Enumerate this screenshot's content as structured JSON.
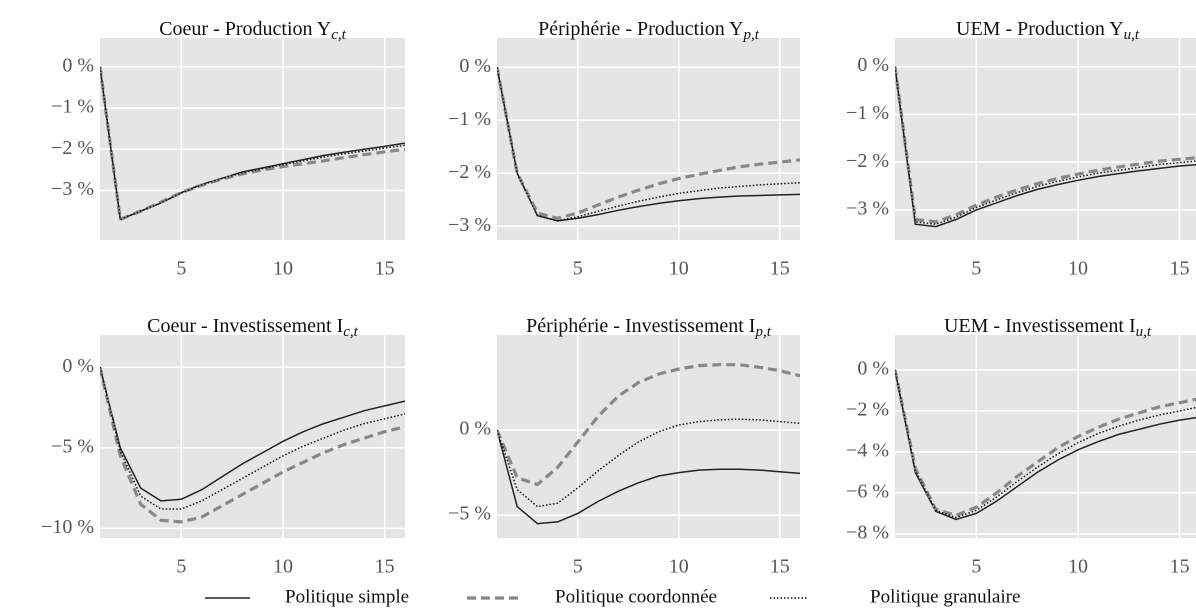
{
  "chart_data": [
    {
      "type": "line",
      "title": "Coeur - Production Y",
      "title_subscript": "c,t",
      "x": [
        1,
        2,
        3,
        4,
        5,
        6,
        7,
        8,
        9,
        10,
        11,
        12,
        13,
        14,
        15,
        16
      ],
      "series": [
        {
          "values": [
            0,
            -3.7,
            -3.5,
            -3.3,
            -3.05,
            -2.85,
            -2.7,
            -2.55,
            -2.45,
            -2.35,
            -2.25,
            -2.15,
            -2.07,
            -2.0,
            -1.93,
            -1.85
          ]
        },
        {
          "values": [
            0,
            -3.7,
            -3.5,
            -3.28,
            -3.05,
            -2.87,
            -2.72,
            -2.6,
            -2.5,
            -2.42,
            -2.35,
            -2.28,
            -2.2,
            -2.13,
            -2.06,
            -2.0
          ]
        },
        {
          "values": [
            0,
            -3.7,
            -3.5,
            -3.3,
            -3.06,
            -2.86,
            -2.71,
            -2.57,
            -2.47,
            -2.37,
            -2.28,
            -2.19,
            -2.11,
            -2.04,
            -1.97,
            -1.9
          ]
        }
      ],
      "xlim": [
        1,
        16
      ],
      "xticks": [
        5,
        10,
        15
      ],
      "ylim": [
        -4.2,
        0.7
      ],
      "yticks": [
        {
          "value": 0,
          "label": "0 %"
        },
        {
          "value": -1,
          "label": "−1 %"
        },
        {
          "value": -2,
          "label": "−2 %"
        },
        {
          "value": -3,
          "label": "−3 %"
        }
      ],
      "grid": true
    },
    {
      "type": "line",
      "title": "Périphérie - Production Y",
      "title_subscript": "p,t",
      "x": [
        1,
        2,
        3,
        4,
        5,
        6,
        7,
        8,
        9,
        10,
        11,
        12,
        13,
        14,
        15,
        16
      ],
      "series": [
        {
          "values": [
            0,
            -2.0,
            -2.8,
            -2.9,
            -2.85,
            -2.78,
            -2.7,
            -2.63,
            -2.57,
            -2.52,
            -2.48,
            -2.45,
            -2.43,
            -2.42,
            -2.41,
            -2.4
          ]
        },
        {
          "values": [
            0,
            -2.0,
            -2.75,
            -2.85,
            -2.75,
            -2.6,
            -2.45,
            -2.32,
            -2.2,
            -2.1,
            -2.02,
            -1.95,
            -1.88,
            -1.83,
            -1.79,
            -1.75
          ]
        },
        {
          "values": [
            0,
            -2.0,
            -2.8,
            -2.9,
            -2.82,
            -2.72,
            -2.62,
            -2.53,
            -2.45,
            -2.38,
            -2.33,
            -2.28,
            -2.25,
            -2.22,
            -2.2,
            -2.18
          ]
        }
      ],
      "xlim": [
        1,
        16
      ],
      "xticks": [
        5,
        10,
        15
      ],
      "ylim": [
        -3.26,
        0.55
      ],
      "yticks": [
        {
          "value": 0,
          "label": "0 %"
        },
        {
          "value": -1,
          "label": "−1 %"
        },
        {
          "value": -2,
          "label": "−2 %"
        },
        {
          "value": -3,
          "label": "−3 %"
        }
      ],
      "grid": true
    },
    {
      "type": "line",
      "title": "UEM - Production Y",
      "title_subscript": "u,t",
      "x": [
        1,
        2,
        3,
        4,
        5,
        6,
        7,
        8,
        9,
        10,
        11,
        12,
        13,
        14,
        15,
        16
      ],
      "series": [
        {
          "values": [
            0,
            -3.3,
            -3.35,
            -3.2,
            -3.0,
            -2.85,
            -2.7,
            -2.57,
            -2.47,
            -2.38,
            -2.3,
            -2.24,
            -2.18,
            -2.13,
            -2.08,
            -2.05
          ]
        },
        {
          "values": [
            0,
            -3.2,
            -3.25,
            -3.1,
            -2.9,
            -2.73,
            -2.58,
            -2.45,
            -2.34,
            -2.25,
            -2.17,
            -2.1,
            -2.04,
            -1.98,
            -1.94,
            -1.9
          ]
        },
        {
          "values": [
            0,
            -3.25,
            -3.3,
            -3.15,
            -2.95,
            -2.79,
            -2.64,
            -2.51,
            -2.4,
            -2.31,
            -2.23,
            -2.17,
            -2.11,
            -2.05,
            -2.01,
            -1.97
          ]
        }
      ],
      "xlim": [
        1,
        16
      ],
      "xticks": [
        5,
        10,
        15
      ],
      "ylim": [
        -3.63,
        0.6
      ],
      "yticks": [
        {
          "value": 0,
          "label": "0 %"
        },
        {
          "value": -1,
          "label": "−1 %"
        },
        {
          "value": -2,
          "label": "−2 %"
        },
        {
          "value": -3,
          "label": "−3 %"
        }
      ],
      "grid": true
    },
    {
      "type": "line",
      "title": "Coeur - Investissement I",
      "title_subscript": "c,t",
      "x": [
        1,
        2,
        3,
        4,
        5,
        6,
        7,
        8,
        9,
        10,
        11,
        12,
        13,
        14,
        15,
        16
      ],
      "series": [
        {
          "values": [
            0,
            -5,
            -7.5,
            -8.3,
            -8.2,
            -7.6,
            -6.8,
            -6.0,
            -5.3,
            -4.6,
            -4.0,
            -3.5,
            -3.1,
            -2.7,
            -2.4,
            -2.1
          ]
        },
        {
          "values": [
            0,
            -5.5,
            -8.5,
            -9.5,
            -9.6,
            -9.3,
            -8.6,
            -7.9,
            -7.2,
            -6.5,
            -5.9,
            -5.3,
            -4.8,
            -4.4,
            -4.0,
            -3.7
          ]
        },
        {
          "values": [
            0,
            -5.2,
            -8.0,
            -8.8,
            -8.8,
            -8.3,
            -7.6,
            -6.9,
            -6.2,
            -5.5,
            -4.9,
            -4.4,
            -3.9,
            -3.5,
            -3.2,
            -2.9
          ]
        }
      ],
      "xlim": [
        1,
        16
      ],
      "xticks": [
        5,
        10,
        15
      ],
      "ylim": [
        -10.6,
        2
      ],
      "yticks": [
        {
          "value": 0,
          "label": "0 %"
        },
        {
          "value": -5,
          "label": "−5 %"
        },
        {
          "value": -10,
          "label": "−10 %"
        }
      ],
      "grid": true
    },
    {
      "type": "line",
      "title": "Périphérie - Investissement I",
      "title_subscript": "p,t",
      "x": [
        1,
        2,
        3,
        4,
        5,
        6,
        7,
        8,
        9,
        10,
        11,
        12,
        13,
        14,
        15,
        16
      ],
      "series": [
        {
          "values": [
            0,
            -4.5,
            -5.5,
            -5.4,
            -4.9,
            -4.2,
            -3.6,
            -3.1,
            -2.7,
            -2.5,
            -2.35,
            -2.3,
            -2.3,
            -2.35,
            -2.45,
            -2.55
          ]
        },
        {
          "values": [
            0,
            -2.8,
            -3.2,
            -2.2,
            -0.7,
            0.8,
            2.0,
            2.8,
            3.3,
            3.6,
            3.8,
            3.85,
            3.85,
            3.7,
            3.5,
            3.2
          ]
        },
        {
          "values": [
            0,
            -3.5,
            -4.5,
            -4.3,
            -3.4,
            -2.4,
            -1.5,
            -0.7,
            -0.1,
            0.3,
            0.5,
            0.6,
            0.65,
            0.6,
            0.5,
            0.4
          ]
        }
      ],
      "xlim": [
        1,
        16
      ],
      "xticks": [
        5,
        10,
        15
      ],
      "ylim": [
        -6.35,
        5.6
      ],
      "yticks": [
        {
          "value": 0,
          "label": "0 %"
        },
        {
          "value": -5,
          "label": "−5 %"
        }
      ],
      "grid": true
    },
    {
      "type": "line",
      "title": "UEM - Investissement I",
      "title_subscript": "u,t",
      "x": [
        1,
        2,
        3,
        4,
        5,
        6,
        7,
        8,
        9,
        10,
        11,
        12,
        13,
        14,
        15,
        16
      ],
      "series": [
        {
          "values": [
            0,
            -5,
            -6.9,
            -7.3,
            -7.0,
            -6.4,
            -5.7,
            -5.0,
            -4.4,
            -3.9,
            -3.5,
            -3.15,
            -2.9,
            -2.65,
            -2.45,
            -2.3
          ]
        },
        {
          "values": [
            0,
            -4.8,
            -6.8,
            -7.1,
            -6.7,
            -6.0,
            -5.2,
            -4.5,
            -3.8,
            -3.25,
            -2.8,
            -2.4,
            -2.1,
            -1.8,
            -1.6,
            -1.4
          ]
        },
        {
          "values": [
            0,
            -4.9,
            -6.85,
            -7.2,
            -6.85,
            -6.2,
            -5.45,
            -4.75,
            -4.1,
            -3.55,
            -3.1,
            -2.75,
            -2.45,
            -2.2,
            -2.0,
            -1.8
          ]
        }
      ],
      "xlim": [
        1,
        16
      ],
      "xticks": [
        5,
        10,
        15
      ],
      "ylim": [
        -8.2,
        1.7
      ],
      "yticks": [
        {
          "value": 0,
          "label": "0 %"
        },
        {
          "value": -2,
          "label": "−2 %"
        },
        {
          "value": -4,
          "label": "−4 %"
        },
        {
          "value": -6,
          "label": "−6 %"
        },
        {
          "value": -8,
          "label": "−8 %"
        }
      ],
      "grid": true
    }
  ],
  "legend": [
    {
      "name": "Politique simple",
      "color": "#222222",
      "dash": "solid"
    },
    {
      "name": "Politique coordonnée",
      "color": "#888888",
      "dash": "dashed"
    },
    {
      "name": "Politique granulaire",
      "color": "#111111",
      "dash": "dotted"
    }
  ]
}
